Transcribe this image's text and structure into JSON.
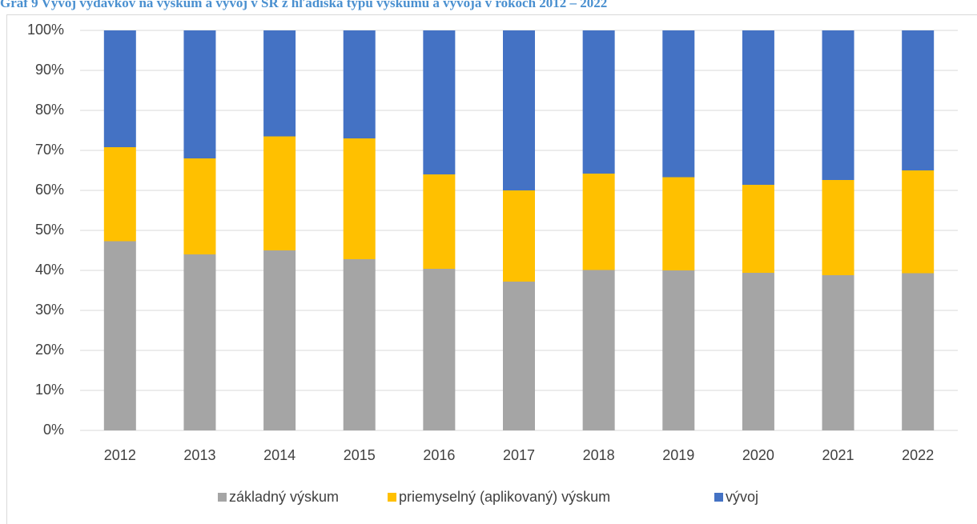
{
  "chart_data": {
    "type": "stacked_bar",
    "title": "Graf 9 Vývoj výdavkov na výskum a vývoj v SR z hľadiska typu výskumu a vývoja v rokoch 2012 – 2022",
    "categories": [
      "2012",
      "2013",
      "2014",
      "2015",
      "2016",
      "2017",
      "2018",
      "2019",
      "2020",
      "2021",
      "2022"
    ],
    "series": [
      {
        "name": "základný výskum",
        "color": "#a5a5a5",
        "values": [
          47.3,
          44,
          45,
          42.8,
          40.4,
          37.2,
          40.1,
          40,
          39.4,
          38.8,
          39.3
        ]
      },
      {
        "name": "priemyselný (aplikovaný) výskum",
        "color": "#ffc000",
        "values": [
          23.5,
          24,
          28.5,
          30.2,
          23.6,
          22.8,
          24.1,
          23.3,
          22,
          23.8,
          25.7
        ]
      },
      {
        "name": "vývoj",
        "color": "#4472c4",
        "values": [
          29.2,
          32,
          26.5,
          27,
          36,
          40,
          35.8,
          36.7,
          38.6,
          37.4,
          35
        ]
      }
    ],
    "ylim": [
      0,
      100
    ],
    "yticks": [
      {
        "value": 0,
        "label": "0%"
      },
      {
        "value": 10,
        "label": "10%"
      },
      {
        "value": 20,
        "label": "20%"
      },
      {
        "value": 30,
        "label": "30%"
      },
      {
        "value": 40,
        "label": "40%"
      },
      {
        "value": 50,
        "label": "50%"
      },
      {
        "value": 60,
        "label": "60%"
      },
      {
        "value": 70,
        "label": "70%"
      },
      {
        "value": 80,
        "label": "80%"
      },
      {
        "value": 90,
        "label": "90%"
      },
      {
        "value": 100,
        "label": "100%"
      }
    ],
    "grid": true,
    "legend": "bottom"
  }
}
